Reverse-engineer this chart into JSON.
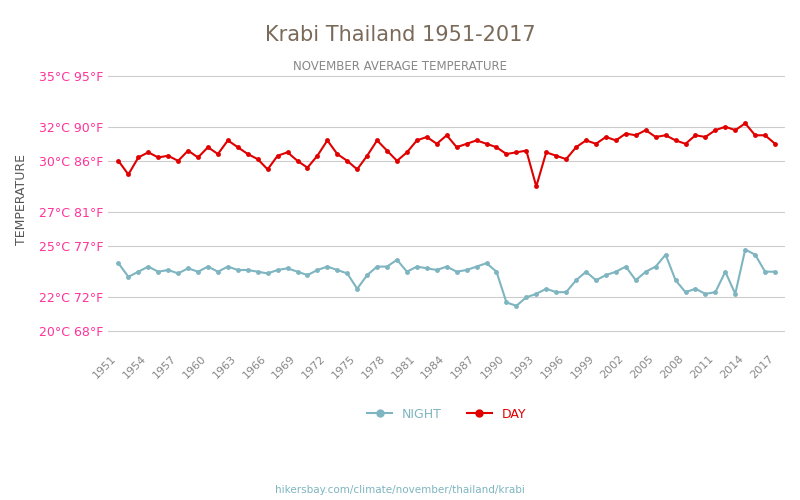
{
  "title": "Krabi Thailand 1951-2017",
  "subtitle": "NOVEMBER AVERAGE TEMPERATURE",
  "ylabel": "TEMPERATURE",
  "footer": "hikersbay.com/climate/november/thailand/krabi",
  "years": [
    1951,
    1952,
    1953,
    1954,
    1955,
    1956,
    1957,
    1958,
    1959,
    1960,
    1961,
    1962,
    1963,
    1964,
    1965,
    1966,
    1967,
    1968,
    1969,
    1970,
    1971,
    1972,
    1973,
    1974,
    1975,
    1976,
    1977,
    1978,
    1979,
    1980,
    1981,
    1982,
    1983,
    1984,
    1985,
    1986,
    1987,
    1988,
    1989,
    1990,
    1991,
    1992,
    1993,
    1994,
    1995,
    1996,
    1997,
    1998,
    1999,
    2000,
    2001,
    2002,
    2003,
    2004,
    2005,
    2006,
    2007,
    2008,
    2009,
    2010,
    2011,
    2012,
    2013,
    2014,
    2015,
    2016,
    2017
  ],
  "day": [
    30.0,
    29.2,
    30.2,
    30.5,
    30.2,
    30.3,
    30.0,
    30.6,
    30.2,
    30.8,
    30.4,
    31.2,
    30.8,
    30.4,
    30.1,
    29.5,
    30.3,
    30.5,
    30.0,
    29.6,
    30.3,
    31.2,
    30.4,
    30.0,
    29.5,
    30.3,
    31.2,
    30.6,
    30.0,
    30.5,
    31.2,
    31.4,
    31.0,
    31.5,
    30.8,
    31.0,
    31.2,
    31.0,
    30.8,
    30.4,
    30.5,
    30.6,
    28.5,
    30.5,
    30.3,
    30.1,
    30.8,
    31.2,
    31.0,
    31.4,
    31.2,
    31.6,
    31.5,
    31.8,
    31.4,
    31.5,
    31.2,
    31.0,
    31.5,
    31.4,
    31.8,
    32.0,
    31.8,
    32.2,
    31.5,
    31.5,
    31.0
  ],
  "night": [
    24.0,
    23.2,
    23.5,
    23.8,
    23.5,
    23.6,
    23.4,
    23.7,
    23.5,
    23.8,
    23.5,
    23.8,
    23.6,
    23.6,
    23.5,
    23.4,
    23.6,
    23.7,
    23.5,
    23.3,
    23.6,
    23.8,
    23.6,
    23.4,
    22.5,
    23.3,
    23.8,
    23.8,
    24.2,
    23.5,
    23.8,
    23.7,
    23.6,
    23.8,
    23.5,
    23.6,
    23.8,
    24.0,
    23.5,
    21.7,
    21.5,
    22.0,
    22.2,
    22.5,
    22.3,
    22.3,
    23.0,
    23.5,
    23.0,
    23.3,
    23.5,
    23.8,
    23.0,
    23.5,
    23.8,
    24.5,
    23.0,
    22.3,
    22.5,
    22.2,
    22.3,
    23.5,
    22.2,
    24.8,
    24.5,
    23.5,
    23.5
  ],
  "yticks_c": [
    20,
    22,
    25,
    27,
    30,
    32,
    35
  ],
  "yticks_f": [
    68,
    72,
    77,
    81,
    86,
    90,
    95
  ],
  "ylim": [
    19.0,
    36.5
  ],
  "day_color": "#e00000",
  "night_color": "#7eb5c0",
  "title_color": "#7a6a5a",
  "subtitle_color": "#888888",
  "ytick_color": "#ff3399",
  "xtick_color": "#888888",
  "ylabel_color": "#555555",
  "grid_color": "#cccccc",
  "bg_color": "#ffffff",
  "legend_day": "DAY",
  "legend_night": "NIGHT",
  "marker_size": 3.5,
  "linewidth": 1.5
}
